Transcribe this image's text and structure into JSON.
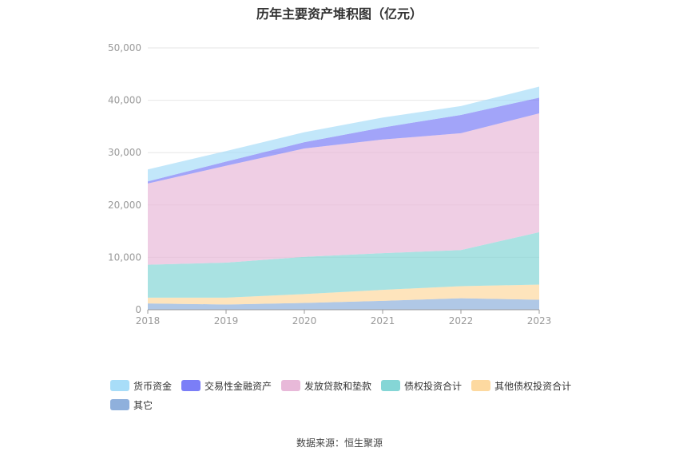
{
  "chart_data": {
    "type": "area",
    "stacked": true,
    "title": "历年主要资产堆积图（亿元）",
    "categories": [
      "2018",
      "2019",
      "2020",
      "2021",
      "2022",
      "2023"
    ],
    "ylim": [
      0,
      50000
    ],
    "yticks": [
      "0",
      "10,000",
      "20,000",
      "30,000",
      "40,000",
      "50,000"
    ],
    "grid": true,
    "legend_position": "bottom",
    "series": [
      {
        "name": "其它",
        "color": "#8fb0dc",
        "values": [
          1200,
          1000,
          1300,
          1700,
          2200,
          1900
        ]
      },
      {
        "name": "其他债权投资合计",
        "color": "#fdd9a0",
        "values": [
          1100,
          1300,
          1700,
          2100,
          2300,
          2900
        ]
      },
      {
        "name": "债权投资合计",
        "color": "#85d6d6",
        "values": [
          6300,
          6700,
          7100,
          7000,
          6900,
          10000
        ]
      },
      {
        "name": "发放贷款和垫款",
        "color": "#e8b9d9",
        "values": [
          15500,
          18500,
          20700,
          21700,
          22300,
          22700
        ]
      },
      {
        "name": "交易性金融资产",
        "color": "#7b7ef7",
        "values": [
          400,
          800,
          1200,
          2300,
          3500,
          3000
        ]
      },
      {
        "name": "货币资金",
        "color": "#a8ddf8",
        "values": [
          2300,
          2000,
          1900,
          1900,
          1700,
          2100
        ]
      }
    ]
  },
  "source": "数据来源：恒生聚源"
}
